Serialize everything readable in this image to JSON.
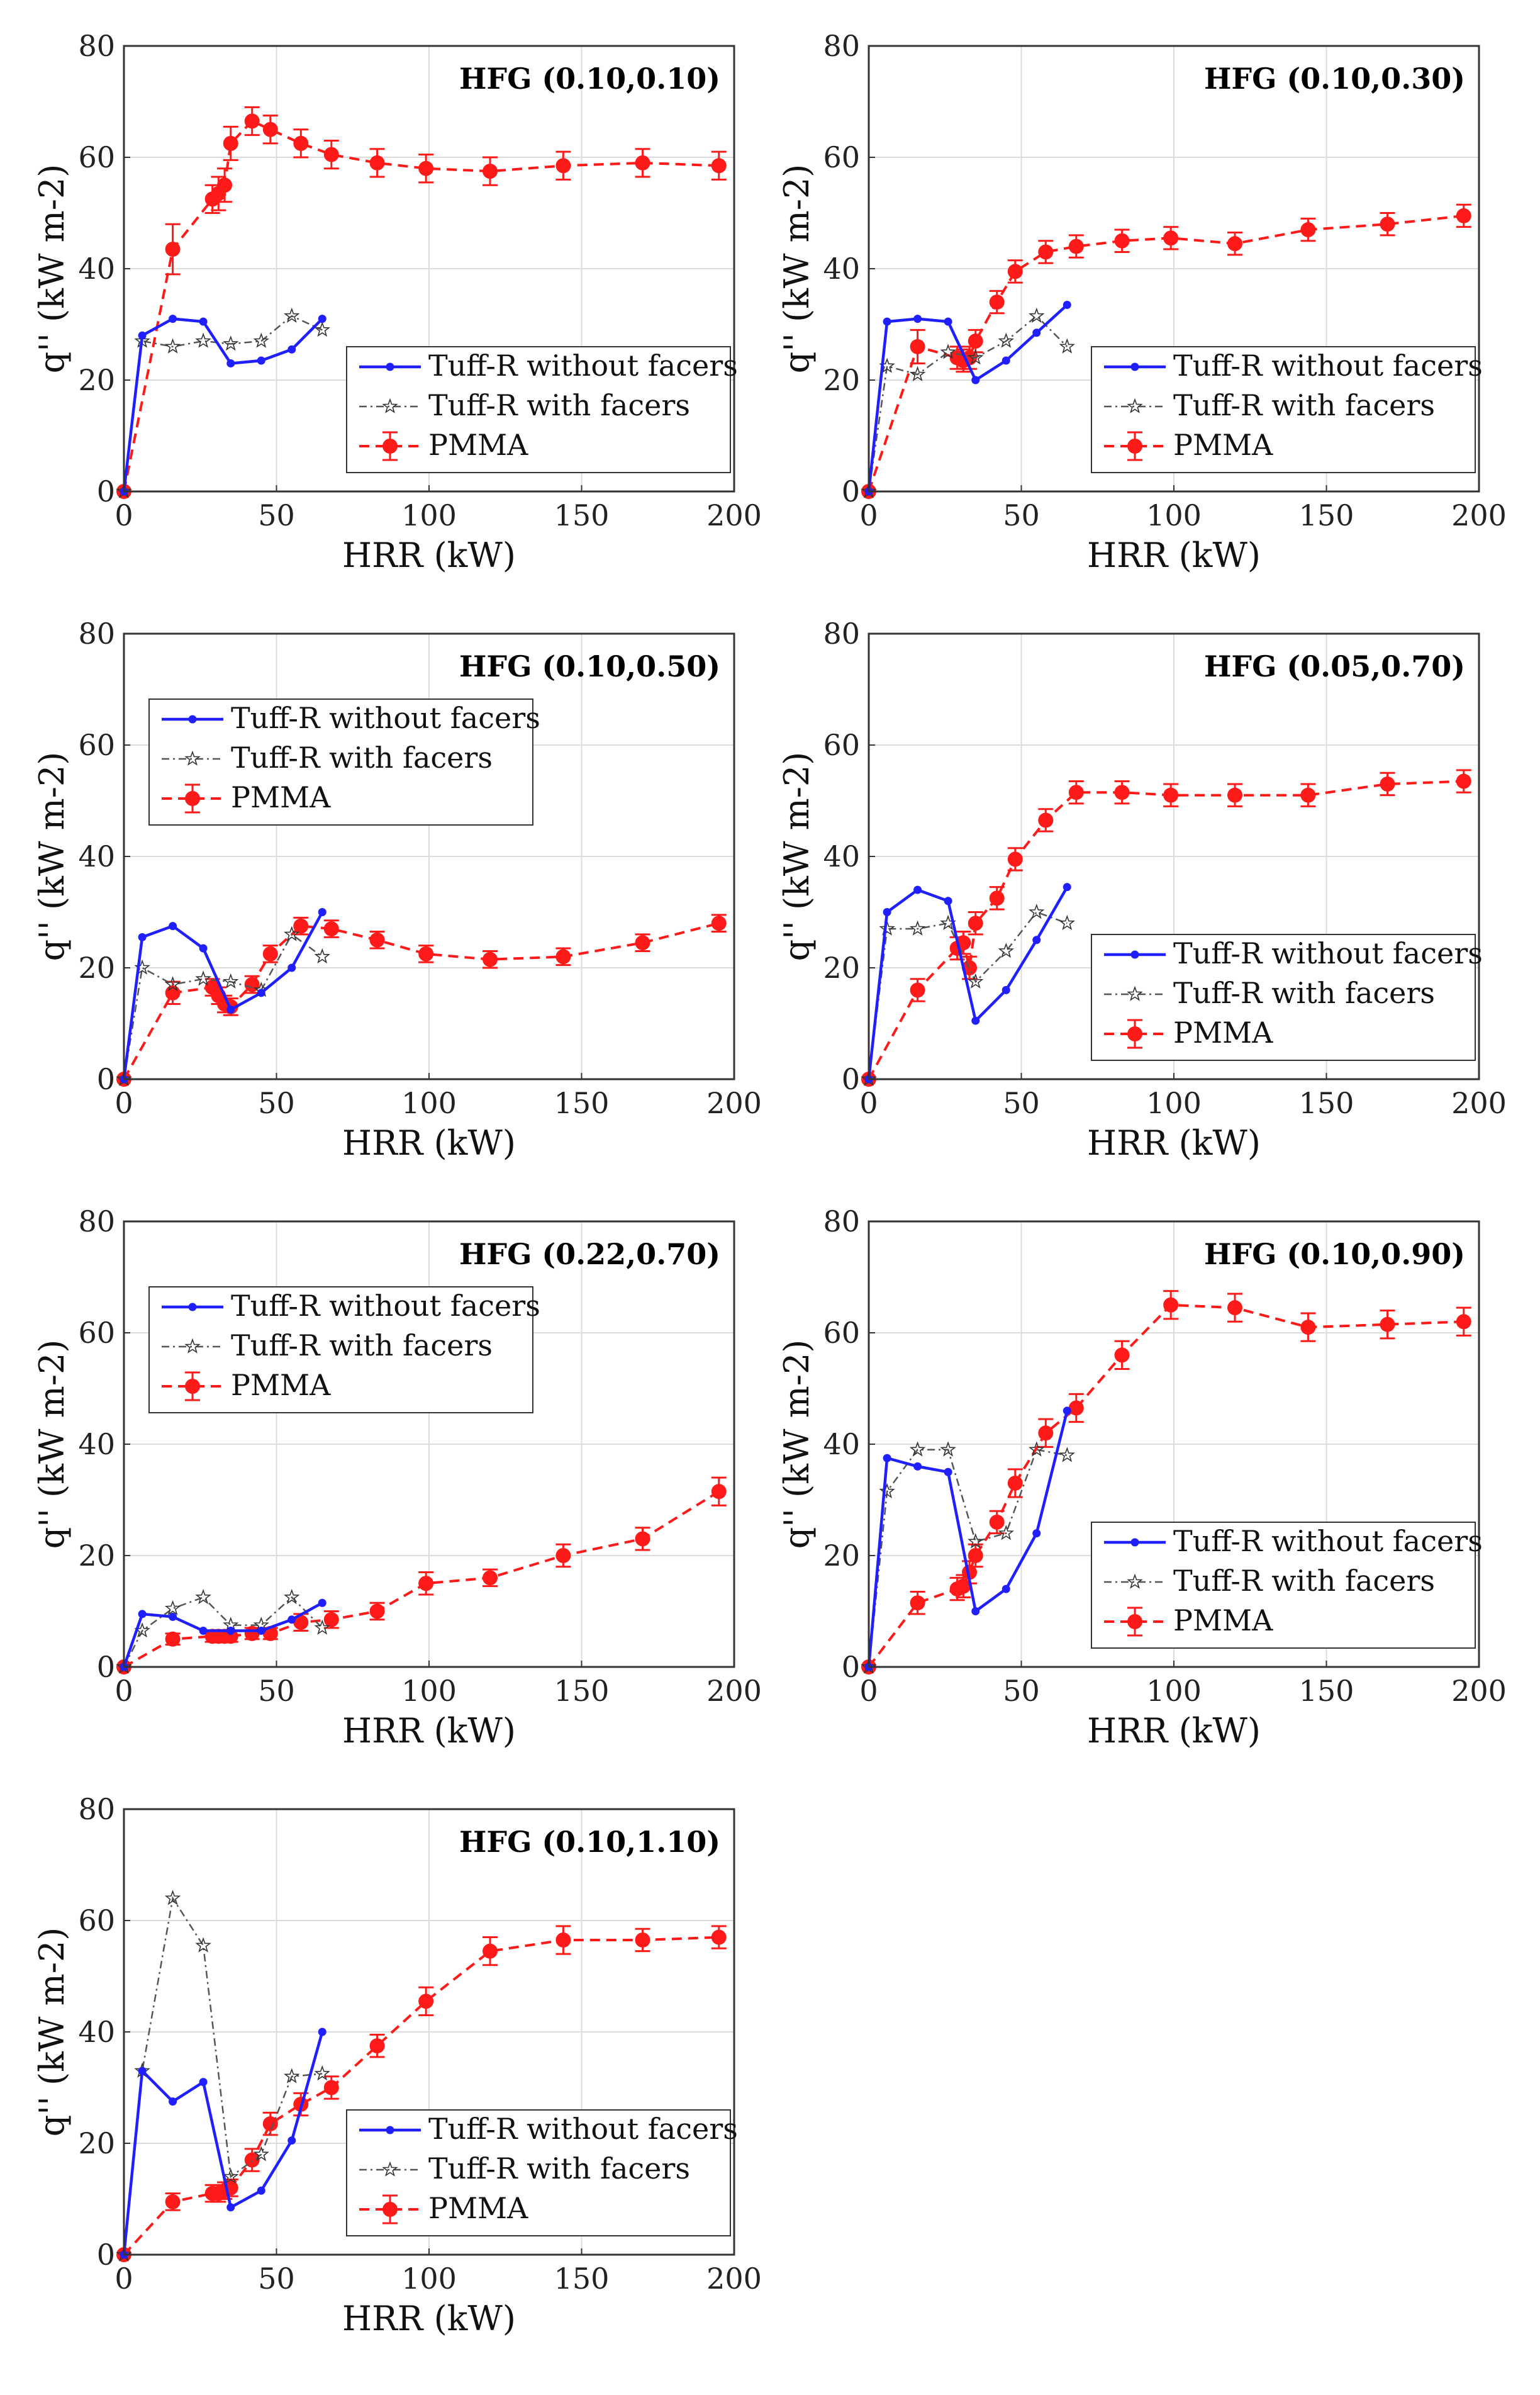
{
  "colors": {
    "without": "#1f1fff",
    "with": "#555555",
    "pmma": "#ff1a1a"
  },
  "chart_data": [
    {
      "type": "line",
      "title": "HFG (0.10,0.10)",
      "xlabel": "HRR (kW)",
      "ylabel": "q'' (kW m-2)",
      "xlim": [
        0,
        200
      ],
      "ylim": [
        0,
        80
      ],
      "xticks": [
        "0",
        "50",
        "100",
        "150",
        "200"
      ],
      "yticks": [
        "0",
        "20",
        "40",
        "60",
        "80"
      ],
      "legend_position": "bottom-right",
      "series": [
        {
          "name": "Tuff-R without facers",
          "x": [
            0,
            6,
            16,
            26,
            35,
            45,
            55,
            65
          ],
          "y": [
            0,
            28,
            31,
            30.5,
            23,
            23.5,
            25.5,
            31
          ]
        },
        {
          "name": "Tuff-R with facers",
          "x": [
            0,
            6,
            16,
            26,
            35,
            45,
            55,
            65
          ],
          "y": [
            0,
            27,
            26,
            27,
            26.5,
            27,
            31.5,
            29
          ]
        },
        {
          "name": "PMMA",
          "x": [
            0,
            16,
            29,
            31,
            33,
            35,
            42,
            48,
            58,
            68,
            83,
            99,
            120,
            144,
            170,
            195
          ],
          "y": [
            0,
            43.5,
            52.5,
            53.5,
            55,
            62.5,
            66.5,
            65,
            62.5,
            60.5,
            59,
            58,
            57.5,
            58.5,
            59,
            58.5
          ],
          "err": [
            0,
            4.5,
            2.5,
            3,
            3,
            3,
            2.5,
            2.5,
            2.5,
            2.5,
            2.5,
            2.5,
            2.5,
            2.5,
            2.5,
            2.5
          ]
        }
      ]
    },
    {
      "type": "line",
      "title": "HFG (0.10,0.30)",
      "xlabel": "HRR (kW)",
      "ylabel": "q'' (kW m-2)",
      "xlim": [
        0,
        200
      ],
      "ylim": [
        0,
        80
      ],
      "xticks": [
        "0",
        "50",
        "100",
        "150",
        "200"
      ],
      "yticks": [
        "0",
        "20",
        "40",
        "60",
        "80"
      ],
      "legend_position": "bottom-right",
      "series": [
        {
          "name": "Tuff-R without facers",
          "x": [
            0,
            6,
            16,
            26,
            35,
            45,
            55,
            65
          ],
          "y": [
            0,
            30.5,
            31,
            30.5,
            20,
            23.5,
            28.5,
            33.5
          ]
        },
        {
          "name": "Tuff-R with facers",
          "x": [
            0,
            6,
            16,
            26,
            35,
            45,
            55,
            65
          ],
          "y": [
            0,
            22.5,
            21,
            25,
            24,
            27,
            31.5,
            26
          ]
        },
        {
          "name": "PMMA",
          "x": [
            0,
            16,
            29,
            31,
            33,
            35,
            42,
            48,
            58,
            68,
            83,
            99,
            120,
            144,
            170,
            195
          ],
          "y": [
            0,
            26,
            24,
            23.5,
            24,
            27,
            34,
            39.5,
            43,
            44,
            45,
            45.5,
            44.5,
            47,
            48,
            49.5
          ],
          "err": [
            0,
            3,
            2,
            2,
            2,
            2,
            2,
            2,
            2,
            2,
            2,
            2,
            2,
            2,
            2,
            2
          ]
        }
      ]
    },
    {
      "type": "line",
      "title": "HFG (0.10,0.50)",
      "xlabel": "HRR (kW)",
      "ylabel": "q'' (kW m-2)",
      "xlim": [
        0,
        200
      ],
      "ylim": [
        0,
        80
      ],
      "xticks": [
        "0",
        "50",
        "100",
        "150",
        "200"
      ],
      "yticks": [
        "0",
        "20",
        "40",
        "60",
        "80"
      ],
      "legend_position": "top-left",
      "series": [
        {
          "name": "Tuff-R without facers",
          "x": [
            0,
            6,
            16,
            26,
            35,
            45,
            55,
            65
          ],
          "y": [
            0,
            25.5,
            27.5,
            23.5,
            12.5,
            15.5,
            20,
            30
          ]
        },
        {
          "name": "Tuff-R with facers",
          "x": [
            0,
            6,
            16,
            26,
            35,
            45,
            55,
            65
          ],
          "y": [
            0,
            20,
            17,
            18,
            17.5,
            16,
            26,
            22
          ]
        },
        {
          "name": "PMMA",
          "x": [
            0,
            16,
            29,
            31,
            33,
            35,
            42,
            48,
            58,
            68,
            83,
            99,
            120,
            144,
            170,
            195
          ],
          "y": [
            0,
            15.5,
            16.5,
            15,
            13.5,
            13,
            17,
            22.5,
            27.5,
            27,
            25,
            22.5,
            21.5,
            22,
            24.5,
            28
          ],
          "err": [
            0,
            2,
            1.5,
            1.5,
            1.5,
            1.5,
            1.5,
            1.5,
            1.5,
            1.5,
            1.5,
            1.5,
            1.5,
            1.5,
            1.5,
            1.5
          ]
        }
      ]
    },
    {
      "type": "line",
      "title": "HFG (0.05,0.70)",
      "xlabel": "HRR (kW)",
      "ylabel": "q'' (kW m-2)",
      "xlim": [
        0,
        200
      ],
      "ylim": [
        0,
        80
      ],
      "xticks": [
        "0",
        "50",
        "100",
        "150",
        "200"
      ],
      "yticks": [
        "0",
        "20",
        "40",
        "60",
        "80"
      ],
      "legend_position": "bottom-right",
      "series": [
        {
          "name": "Tuff-R without facers",
          "x": [
            0,
            6,
            16,
            26,
            35,
            45,
            55,
            65
          ],
          "y": [
            0,
            30,
            34,
            32,
            10.5,
            16,
            25,
            34.5
          ]
        },
        {
          "name": "Tuff-R with facers",
          "x": [
            0,
            6,
            16,
            26,
            35,
            45,
            55,
            65
          ],
          "y": [
            0,
            27,
            27,
            28,
            17.5,
            23,
            30,
            28
          ]
        },
        {
          "name": "PMMA",
          "x": [
            0,
            16,
            29,
            31,
            33,
            35,
            42,
            48,
            58,
            68,
            83,
            99,
            120,
            144,
            170,
            195
          ],
          "y": [
            0,
            16,
            23.5,
            24.5,
            20,
            28,
            32.5,
            39.5,
            46.5,
            51.5,
            51.5,
            51,
            51,
            51,
            53,
            53.5
          ],
          "err": [
            0,
            2,
            2,
            2,
            2,
            2,
            2,
            2,
            2,
            2,
            2,
            2,
            2,
            2,
            2,
            2
          ]
        }
      ]
    },
    {
      "type": "line",
      "title": "HFG (0.22,0.70)",
      "xlabel": "HRR (kW)",
      "ylabel": "q'' (kW m-2)",
      "xlim": [
        0,
        200
      ],
      "ylim": [
        0,
        80
      ],
      "xticks": [
        "0",
        "50",
        "100",
        "150",
        "200"
      ],
      "yticks": [
        "0",
        "20",
        "40",
        "60",
        "80"
      ],
      "legend_position": "top-left",
      "series": [
        {
          "name": "Tuff-R without facers",
          "x": [
            0,
            6,
            16,
            26,
            35,
            45,
            55,
            65
          ],
          "y": [
            0,
            9.5,
            9,
            6.5,
            6.5,
            6.5,
            8.5,
            11.5
          ]
        },
        {
          "name": "Tuff-R with facers",
          "x": [
            0,
            6,
            16,
            26,
            35,
            45,
            55,
            65
          ],
          "y": [
            0,
            6.5,
            10.5,
            12.5,
            7.5,
            7.5,
            12.5,
            7
          ]
        },
        {
          "name": "PMMA",
          "x": [
            0,
            16,
            29,
            31,
            33,
            35,
            42,
            48,
            58,
            68,
            83,
            99,
            120,
            144,
            170,
            195
          ],
          "y": [
            0,
            5,
            5.5,
            5.5,
            5.5,
            5.5,
            6,
            6,
            8,
            8.5,
            10,
            15,
            16,
            20,
            23,
            31.5
          ],
          "err": [
            0,
            1,
            1,
            1,
            1,
            1,
            1,
            1,
            1.5,
            1.5,
            1.5,
            2,
            1.5,
            2,
            2,
            2.5
          ]
        }
      ]
    },
    {
      "type": "line",
      "title": "HFG (0.10,0.90)",
      "xlabel": "HRR (kW)",
      "ylabel": "q'' (kW m-2)",
      "xlim": [
        0,
        200
      ],
      "ylim": [
        0,
        80
      ],
      "xticks": [
        "0",
        "50",
        "100",
        "150",
        "200"
      ],
      "yticks": [
        "0",
        "20",
        "40",
        "60",
        "80"
      ],
      "legend_position": "bottom-right",
      "series": [
        {
          "name": "Tuff-R without facers",
          "x": [
            0,
            6,
            16,
            26,
            35,
            45,
            55,
            65
          ],
          "y": [
            0,
            37.5,
            36,
            35,
            10,
            14,
            24,
            46
          ]
        },
        {
          "name": "Tuff-R with facers",
          "x": [
            0,
            6,
            16,
            26,
            35,
            45,
            55,
            65
          ],
          "y": [
            0,
            31.5,
            39,
            39,
            22.5,
            24,
            39,
            38
          ]
        },
        {
          "name": "PMMA",
          "x": [
            0,
            16,
            29,
            31,
            33,
            35,
            42,
            48,
            58,
            68,
            83,
            99,
            120,
            144,
            170,
            195
          ],
          "y": [
            0,
            11.5,
            14,
            14.5,
            17,
            20,
            26,
            33,
            42,
            46.5,
            56,
            65,
            64.5,
            61,
            61.5,
            62
          ],
          "err": [
            0,
            2,
            2,
            2,
            2,
            2,
            2,
            2.5,
            2.5,
            2.5,
            2.5,
            2.5,
            2.5,
            2.5,
            2.5,
            2.5
          ]
        }
      ]
    },
    {
      "type": "line",
      "title": "HFG (0.10,1.10)",
      "xlabel": "HRR (kW)",
      "ylabel": "q'' (kW m-2)",
      "xlim": [
        0,
        200
      ],
      "ylim": [
        0,
        80
      ],
      "xticks": [
        "0",
        "50",
        "100",
        "150",
        "200"
      ],
      "yticks": [
        "0",
        "20",
        "40",
        "60",
        "80"
      ],
      "legend_position": "bottom-right",
      "series": [
        {
          "name": "Tuff-R without facers",
          "x": [
            0,
            6,
            16,
            26,
            35,
            45,
            55,
            65
          ],
          "y": [
            0,
            33,
            27.5,
            31,
            8.5,
            11.5,
            20.5,
            40
          ]
        },
        {
          "name": "Tuff-R with facers",
          "x": [
            0,
            6,
            16,
            26,
            35,
            45,
            55,
            65
          ],
          "y": [
            0,
            33,
            64,
            55.5,
            14,
            18,
            32,
            32.5
          ]
        },
        {
          "name": "PMMA",
          "x": [
            0,
            16,
            29,
            31,
            33,
            35,
            42,
            48,
            58,
            68,
            83,
            99,
            120,
            144,
            170,
            195
          ],
          "y": [
            0,
            9.5,
            11,
            11,
            11.5,
            12,
            17,
            23.5,
            27,
            30,
            37.5,
            45.5,
            54.5,
            56.5,
            56.5,
            57
          ],
          "err": [
            0,
            1.5,
            1.5,
            1.5,
            1.5,
            1.5,
            2,
            2,
            2,
            2,
            2,
            2.5,
            2.5,
            2.5,
            2,
            2
          ]
        }
      ]
    }
  ]
}
